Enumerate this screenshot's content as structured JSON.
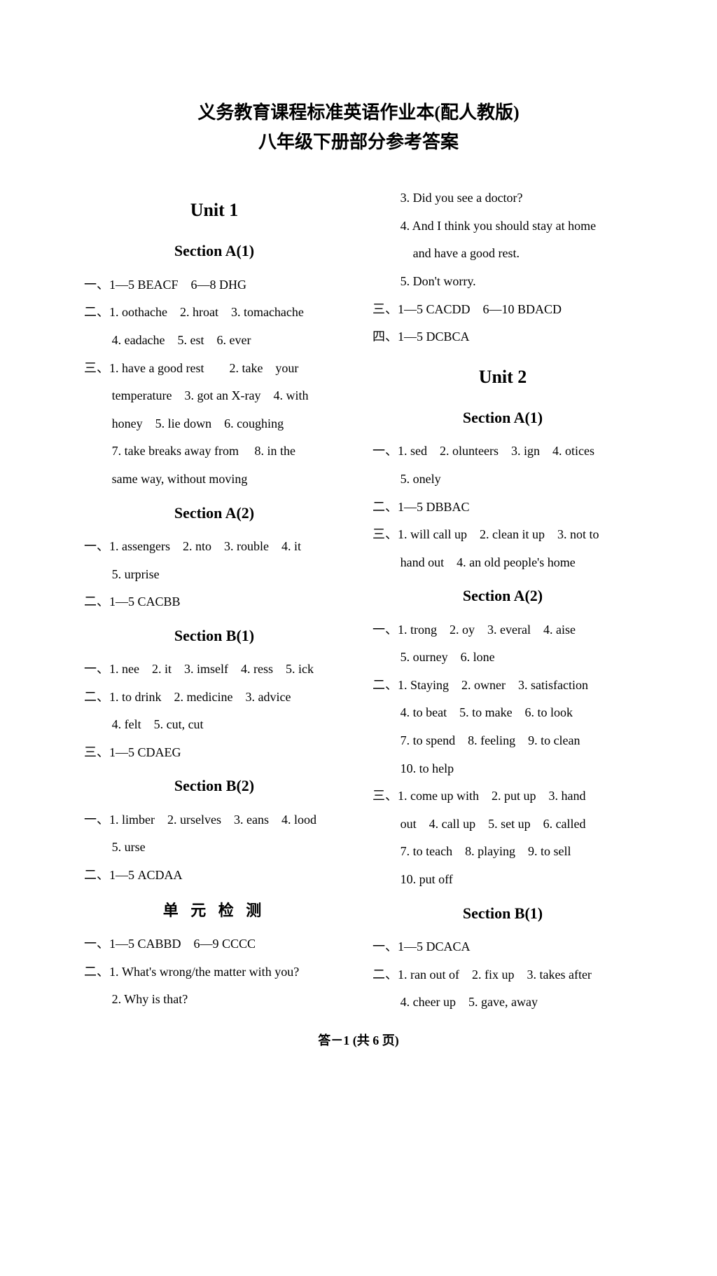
{
  "title": {
    "line1": "义务教育课程标准英语作业本(配人教版)",
    "line2": "八年级下册部分参考答案"
  },
  "left": {
    "unit1": "Unit 1",
    "secA1": "Section A(1)",
    "a1_l1": "一、1—5 BEACF　6—8 DHG",
    "a1_l2": "二、1. oothache　2. hroat　3. tomachache",
    "a1_l3": "4. eadache　5. est　6. ever",
    "a1_l4": "三、1. have a good rest　　2. take　your",
    "a1_l5": "temperature　3. got an X-ray　4. with",
    "a1_l6": "honey　5. lie down　6. coughing",
    "a1_l7": "7. take breaks away from　 8. in the",
    "a1_l8": "same way, without moving",
    "secA2": "Section A(2)",
    "a2_l1": "一、1. assengers　2. nto　3. rouble　4. it",
    "a2_l2": "5. urprise",
    "a2_l3": "二、1—5 CACBB",
    "secB1": "Section B(1)",
    "b1_l1": "一、1. nee　2. it　3. imself　4. ress　5. ick",
    "b1_l2": "二、1. to drink　2. medicine　3. advice",
    "b1_l3": "4. felt　5. cut, cut",
    "b1_l4": "三、1—5 CDAEG",
    "secB2": "Section B(2)",
    "b2_l1": "一、1. limber　2. urselves　3. eans　4. lood",
    "b2_l2": "5. urse",
    "b2_l3": "二、1—5 ACDAA",
    "test": "单 元 检 测",
    "t_l1": "一、1—5 CABBD　6—9 CCCC",
    "t_l2": "二、1. What's wrong/the matter with you?",
    "t_l3": "2. Why is that?"
  },
  "right": {
    "r_l1": "3. Did you see a doctor?",
    "r_l2": "4. And I think you should stay at home",
    "r_l3": "and have a good rest.",
    "r_l4": "5. Don't worry.",
    "r_l5": "三、1—5 CACDD　6—10 BDACD",
    "r_l6": "四、1—5 DCBCA",
    "unit2": "Unit 2",
    "secA1": "Section A(1)",
    "a1_l1": "一、1. sed　2. olunteers　3. ign　4. otices",
    "a1_l2": "5. onely",
    "a1_l3": "二、1—5 DBBAC",
    "a1_l4": "三、1. will call up　2. clean it up　3. not to",
    "a1_l5": "hand out　4. an old people's home",
    "secA2": "Section A(2)",
    "a2_l1": "一、1. trong　2. oy　3. everal　4. aise",
    "a2_l2": "5. ourney　6. lone",
    "a2_l3": "二、1. Staying　2. owner　3. satisfaction",
    "a2_l4": "4. to beat　5. to make　6. to look",
    "a2_l5": "7. to spend　8. feeling　9. to clean",
    "a2_l6": "10. to help",
    "a2_l7": "三、1. come up with　2. put up　3. hand",
    "a2_l8": "out　4. call up　5. set up　6. called",
    "a2_l9": "7. to teach　8. playing　9. to sell",
    "a2_l10": "10. put off",
    "secB1": "Section B(1)",
    "b1_l1": "一、1—5 DCACA",
    "b1_l2": "二、1. ran out of　2. fix up　3. takes after",
    "b1_l3": "4. cheer up　5. gave, away"
  },
  "footer": "答－1 (共 6 页)"
}
